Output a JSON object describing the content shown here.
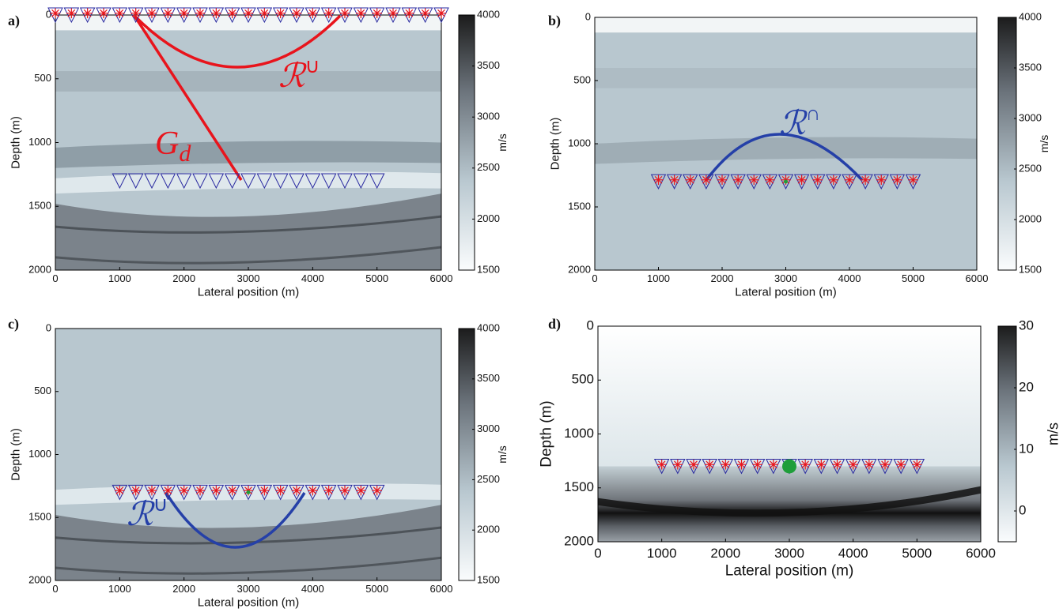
{
  "chart_data": [
    {
      "type": "image",
      "panel": "a)",
      "xlabel": "Lateral position (m)",
      "ylabel": "Depth (m)",
      "xlim": [
        0,
        6000
      ],
      "ylim": [
        2000,
        0
      ],
      "xticks": [
        0,
        1000,
        2000,
        3000,
        4000,
        5000,
        6000
      ],
      "yticks": [
        0,
        500,
        1000,
        1500,
        2000
      ],
      "colorbar": {
        "label": "m/s",
        "lim": [
          1500,
          4000
        ],
        "ticks": [
          1500,
          2000,
          2500,
          3000,
          3500,
          4000
        ]
      },
      "receivers": [
        {
          "depth": 1300,
          "star": false,
          "x": [
            1000,
            1250,
            1500,
            1750,
            2000,
            2250,
            2500,
            2750,
            3000,
            3250,
            3500,
            3750,
            4000,
            4250,
            4500,
            4750,
            5000
          ]
        },
        {
          "depth": 0,
          "star": true,
          "x": [
            0,
            250,
            500,
            750,
            1000,
            1250,
            1500,
            1750,
            2000,
            2250,
            2500,
            2750,
            3000,
            3250,
            3500,
            3750,
            4000,
            4250,
            4500,
            4750,
            5000,
            5250,
            5500,
            5750,
            6000
          ]
        }
      ],
      "annotations": [
        {
          "text": "ℛ",
          "sup": "∪"
        },
        {
          "text": "G",
          "sub": "d"
        }
      ]
    },
    {
      "type": "image",
      "panel": "b)",
      "xlabel": "Lateral position (m)",
      "ylabel": "Depth (m)",
      "xlim": [
        0,
        6000
      ],
      "ylim": [
        2000,
        0
      ],
      "xticks": [
        0,
        1000,
        2000,
        3000,
        4000,
        5000,
        6000
      ],
      "yticks": [
        0,
        500,
        1000,
        1500,
        2000
      ],
      "colorbar": {
        "label": "m/s",
        "lim": [
          1500,
          4000
        ],
        "ticks": [
          1500,
          2000,
          2500,
          3000,
          3500,
          4000
        ]
      },
      "receivers": [
        {
          "depth": 1300,
          "star": true,
          "x": [
            1000,
            1250,
            1500,
            1750,
            2000,
            2250,
            2500,
            2750,
            3000,
            3250,
            3500,
            3750,
            4000,
            4250,
            4500,
            4750,
            5000
          ]
        }
      ],
      "source": {
        "x": 3000,
        "depth": 1300
      },
      "annotations": [
        {
          "text": "ℛ",
          "sup": "∩"
        }
      ]
    },
    {
      "type": "image",
      "panel": "c)",
      "xlabel": "Lateral position (m)",
      "ylabel": "Depth (m)",
      "xlim": [
        0,
        6000
      ],
      "ylim": [
        2000,
        0
      ],
      "xticks": [
        0,
        1000,
        2000,
        3000,
        4000,
        5000,
        6000
      ],
      "yticks": [
        0,
        500,
        1000,
        1500,
        2000
      ],
      "colorbar": {
        "label": "m/s",
        "lim": [
          1500,
          4000
        ],
        "ticks": [
          1500,
          2000,
          2500,
          3000,
          3500,
          4000
        ]
      },
      "receivers": [
        {
          "depth": 1300,
          "star": true,
          "x": [
            1000,
            1250,
            1500,
            1750,
            2000,
            2250,
            2500,
            2750,
            3000,
            3250,
            3500,
            3750,
            4000,
            4250,
            4500,
            4750,
            5000
          ]
        }
      ],
      "source": {
        "x": 3000,
        "depth": 1300
      },
      "annotations": [
        {
          "text": "ℛ",
          "sup": "∪"
        }
      ]
    },
    {
      "type": "image",
      "panel": "d)",
      "xlabel": "Lateral position (m)",
      "ylabel": "Depth (m)",
      "xlim": [
        0,
        6000
      ],
      "ylim": [
        2000,
        0
      ],
      "xticks": [
        0,
        1000,
        2000,
        3000,
        4000,
        5000,
        6000
      ],
      "yticks": [
        0,
        500,
        1000,
        1500,
        2000
      ],
      "colorbar": {
        "label": "m/s",
        "lim": [
          -5,
          30
        ],
        "ticks": [
          0,
          10,
          20,
          30
        ]
      },
      "receivers": [
        {
          "depth": 1300,
          "star": true,
          "x": [
            1000,
            1250,
            1500,
            1750,
            2000,
            2250,
            2500,
            2750,
            3000,
            3250,
            3500,
            3750,
            4000,
            4250,
            4500,
            4750,
            5000
          ]
        }
      ],
      "source": {
        "x": 3000,
        "depth": 1300,
        "size": "large"
      },
      "annotations": []
    }
  ]
}
